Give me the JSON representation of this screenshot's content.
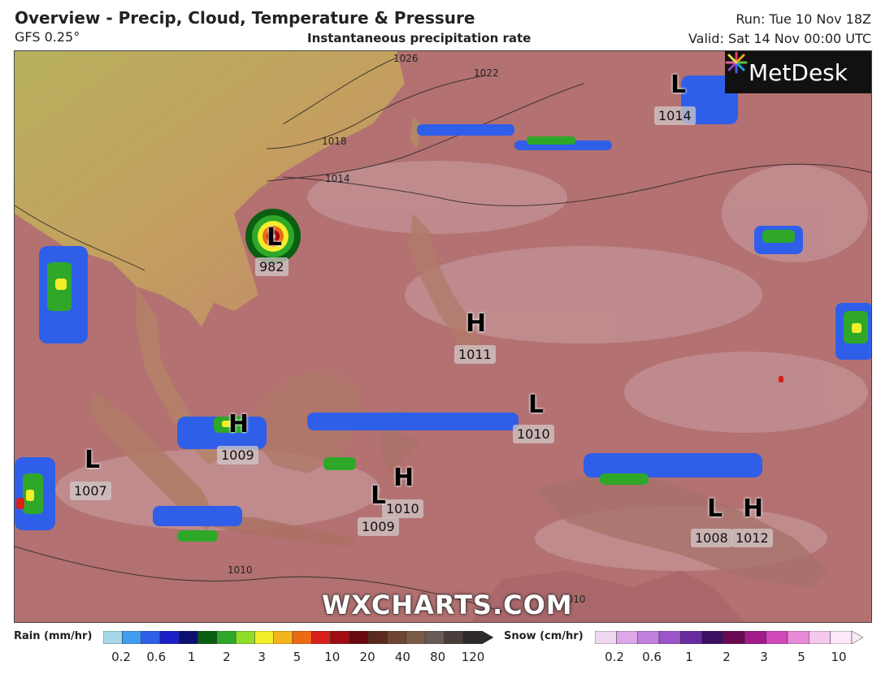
{
  "header": {
    "title": "Overview - Precip, Cloud, Temperature & Pressure",
    "model": "GFS 0.25°",
    "subtitle": "Instantaneous precipitation rate",
    "run": "Run: Tue 10 Nov 18Z",
    "valid": "Valid: Sat 14 Nov 00:00 UTC"
  },
  "logo": {
    "text": "MetDesk",
    "icon": "metdesk-burst-icon"
  },
  "watermark": "WXCHARTS.COM",
  "pressure_systems": [
    {
      "type": "L",
      "value": "1014"
    },
    {
      "type": "L",
      "value": "982"
    },
    {
      "type": "H",
      "value": "1011"
    },
    {
      "type": "L",
      "value": "1010"
    },
    {
      "type": "H",
      "value": "1009"
    },
    {
      "type": "L",
      "value": "1007"
    },
    {
      "type": "H",
      "value": "1010"
    },
    {
      "type": "L",
      "value": "1009"
    },
    {
      "type": "L",
      "value": "1008"
    },
    {
      "type": "H",
      "value": "1012"
    }
  ],
  "isobar_labels": [
    "1026",
    "1022",
    "1018",
    "1014",
    "1010",
    "1010"
  ],
  "rain_legend": {
    "title": "Rain (mm/hr)",
    "ticks": [
      "0.2",
      "0.6",
      "1",
      "2",
      "3",
      "5",
      "10",
      "20",
      "40",
      "80",
      "120"
    ],
    "colors": [
      "#a6d8e8",
      "#3f9ef0",
      "#2f5fe8",
      "#1b20c8",
      "#0b1070",
      "#0a5e12",
      "#2fa82a",
      "#8ddc2a",
      "#f2ee2a",
      "#f4b41c",
      "#ee6a12",
      "#d8201a",
      "#a00c12",
      "#6a0810",
      "#5a2a1c",
      "#6e4632",
      "#7a5a48",
      "#6a5a56",
      "#4a3e3c",
      "#2e2a2a"
    ]
  },
  "snow_legend": {
    "title": "Snow (cm/hr)",
    "ticks": [
      "0.2",
      "0.6",
      "1",
      "2",
      "3",
      "5",
      "10"
    ],
    "colors": [
      "#f0d8f0",
      "#dca8e8",
      "#c080dc",
      "#9c54c8",
      "#6a2aa0",
      "#3c1060",
      "#6a0a50",
      "#a21c8a",
      "#d048b8",
      "#e88ad8",
      "#f6c8ee",
      "#fbe8f8"
    ]
  }
}
